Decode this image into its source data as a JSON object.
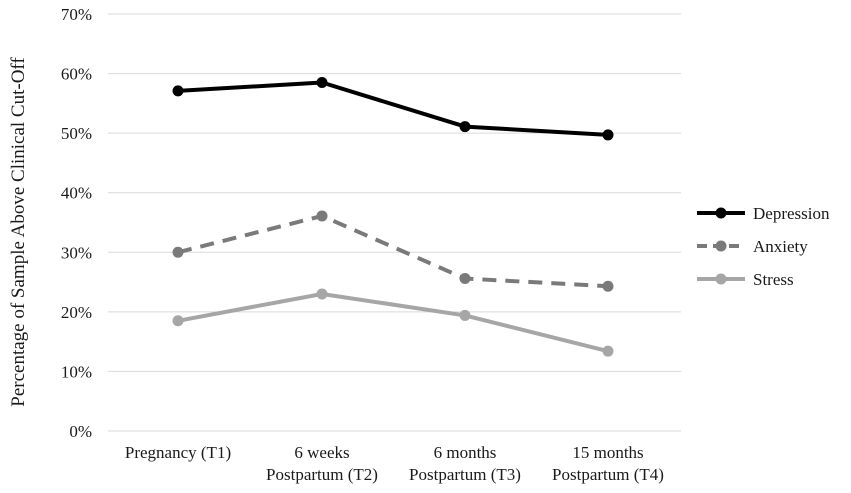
{
  "chart_data": {
    "type": "line",
    "title": "",
    "xlabel": "",
    "ylabel": "Percentage of Sample Above Clinical Cut-Off",
    "ylim": [
      0,
      70
    ],
    "y_ticks": [
      "0%",
      "10%",
      "20%",
      "30%",
      "40%",
      "50%",
      "60%",
      "70%"
    ],
    "y_tick_values": [
      0,
      10,
      20,
      30,
      40,
      50,
      60,
      70
    ],
    "grid": true,
    "categories": [
      [
        "Pregnancy (T1)"
      ],
      [
        "6 weeks",
        "Postpartum (T2)"
      ],
      [
        "6 months",
        "Postpartum (T3)"
      ],
      [
        "15 months",
        "Postpartum (T4)"
      ]
    ],
    "series": [
      {
        "name": "Depression",
        "values": [
          57.1,
          58.5,
          51.1,
          49.7
        ],
        "color": "#000000",
        "dash": "solid"
      },
      {
        "name": "Anxiety",
        "values": [
          30.0,
          36.1,
          25.6,
          24.3
        ],
        "color": "#7a7a7a",
        "dash": "dashed"
      },
      {
        "name": "Stress",
        "values": [
          18.5,
          23.0,
          19.4,
          13.4
        ],
        "color": "#a6a6a6",
        "dash": "solid"
      }
    ],
    "legend_position": "right"
  }
}
